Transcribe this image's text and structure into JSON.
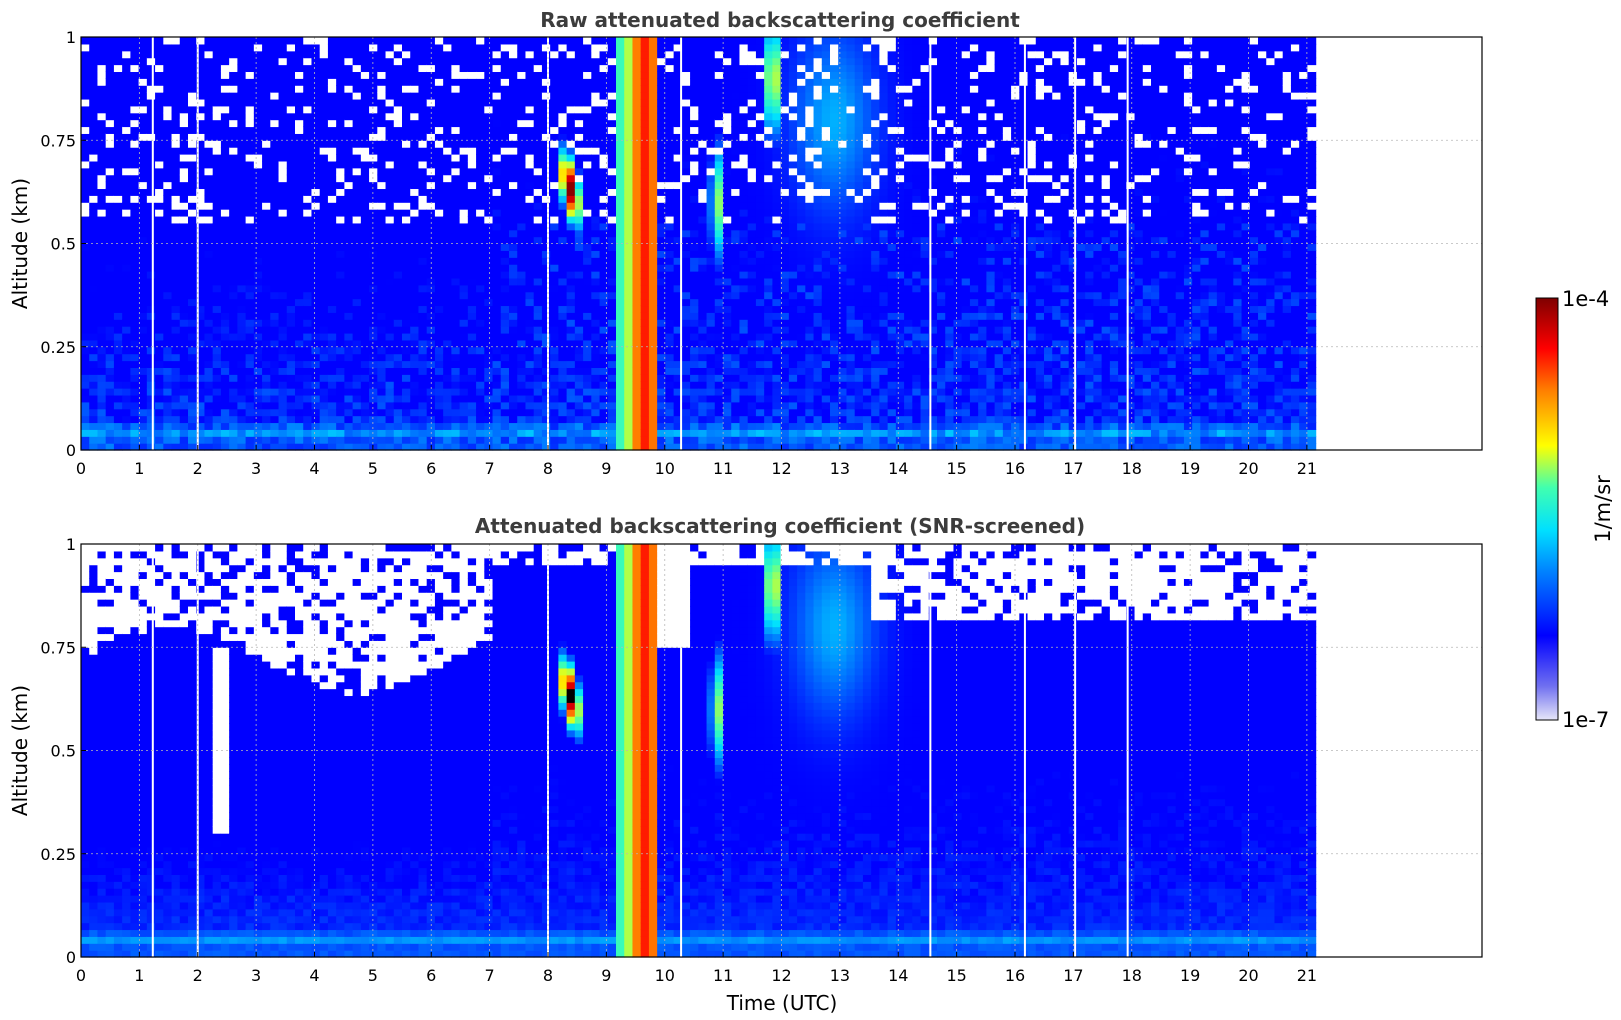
{
  "chart_data": [
    {
      "type": "heatmap",
      "title": "Raw attenuated backscattering coefficient",
      "xlabel": "",
      "ylabel": "Altitude (km)",
      "xlim": [
        0,
        24
      ],
      "ylim": [
        0,
        1
      ],
      "x_ticks": [
        0,
        1,
        2,
        3,
        4,
        5,
        6,
        7,
        8,
        9,
        10,
        11,
        12,
        13,
        14,
        15,
        16,
        17,
        18,
        19,
        20,
        21
      ],
      "y_ticks": [
        0,
        0.25,
        0.5,
        0.75,
        1
      ],
      "y_tick_labels": [
        "0",
        "0.25",
        "0.5",
        "0.75",
        "1"
      ],
      "grid": true,
      "data_extent_hours": [
        0,
        21.15
      ],
      "data_gaps_hours": [
        1.23,
        2.0,
        8.0,
        10.28,
        14.55,
        16.17,
        17.03,
        17.93
      ],
      "screened": false
    },
    {
      "type": "heatmap",
      "title": "Attenuated backscattering coefficient (SNR-screened)",
      "xlabel": "Time (UTC)",
      "ylabel": "Altitude (km)",
      "xlim": [
        0,
        24
      ],
      "ylim": [
        0,
        1
      ],
      "x_ticks": [
        0,
        1,
        2,
        3,
        4,
        5,
        6,
        7,
        8,
        9,
        10,
        11,
        12,
        13,
        14,
        15,
        16,
        17,
        18,
        19,
        20,
        21
      ],
      "y_ticks": [
        0,
        0.25,
        0.5,
        0.75,
        1
      ],
      "y_tick_labels": [
        "0",
        "0.25",
        "0.5",
        "0.75",
        "1"
      ],
      "grid": true,
      "data_extent_hours": [
        0,
        21.15
      ],
      "data_gaps_hours": [
        1.23,
        2.0,
        8.0,
        10.28,
        14.55,
        16.17,
        17.03,
        17.93
      ],
      "screened": true
    }
  ],
  "colorbar": {
    "label": "1/m/sr",
    "min_label": "1e-7",
    "max_label": "1e-4",
    "min": 1e-07,
    "max": 0.0001,
    "scale": "log",
    "colormap": "jet",
    "colors": [
      "#e6e6f8",
      "#0000ff",
      "#00c8ff",
      "#ffff00",
      "#ff0000",
      "#7f0000"
    ]
  }
}
